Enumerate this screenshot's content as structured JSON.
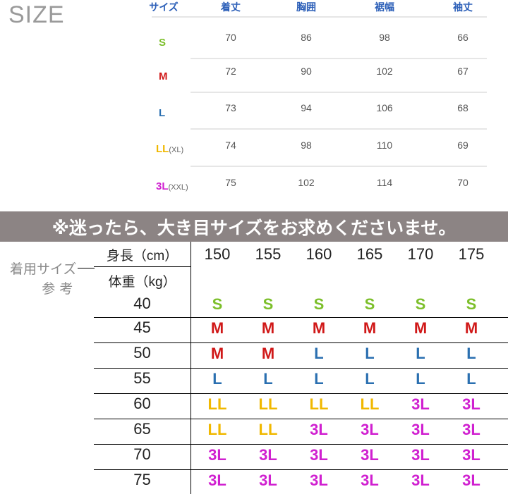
{
  "size_title": "SIZE",
  "size_table": {
    "headers": [
      "サイズ",
      "着丈",
      "胸囲",
      "裾幅",
      "袖丈"
    ],
    "rows": [
      {
        "size": "S",
        "alt": "",
        "values": [
          "70",
          "86",
          "98",
          "66"
        ],
        "color": "#7cbf2a"
      },
      {
        "size": "M",
        "alt": "",
        "values": [
          "72",
          "90",
          "102",
          "67"
        ],
        "color": "#d01818"
      },
      {
        "size": "L",
        "alt": "",
        "values": [
          "73",
          "94",
          "106",
          "68"
        ],
        "color": "#2a6fb0"
      },
      {
        "size": "LL",
        "alt": "(XL)",
        "values": [
          "74",
          "98",
          "110",
          "69"
        ],
        "color": "#f0b800"
      },
      {
        "size": "3L",
        "alt": "(XXL)",
        "values": [
          "75",
          "102",
          "114",
          "70"
        ],
        "color": "#d020d0"
      }
    ]
  },
  "banner": "※迷ったら、大き目サイズをお求めくださいませ。",
  "guide": {
    "side_label_1": "着用サイズ",
    "side_label_2": "参 考",
    "height_label": "身長（cm）",
    "weight_label": "体重（kg）",
    "heights": [
      "150",
      "155",
      "160",
      "165",
      "170",
      "175"
    ],
    "rows": [
      {
        "weight": "40",
        "sizes": [
          "S",
          "S",
          "S",
          "S",
          "S",
          "S"
        ]
      },
      {
        "weight": "45",
        "sizes": [
          "M",
          "M",
          "M",
          "M",
          "M",
          "M"
        ]
      },
      {
        "weight": "50",
        "sizes": [
          "M",
          "M",
          "L",
          "L",
          "L",
          "L"
        ]
      },
      {
        "weight": "55",
        "sizes": [
          "L",
          "L",
          "L",
          "L",
          "L",
          "L"
        ]
      },
      {
        "weight": "60",
        "sizes": [
          "LL",
          "LL",
          "LL",
          "LL",
          "3L",
          "3L"
        ]
      },
      {
        "weight": "65",
        "sizes": [
          "LL",
          "LL",
          "3L",
          "3L",
          "3L",
          "3L"
        ]
      },
      {
        "weight": "70",
        "sizes": [
          "3L",
          "3L",
          "3L",
          "3L",
          "3L",
          "3L"
        ]
      },
      {
        "weight": "75",
        "sizes": [
          "3L",
          "3L",
          "3L",
          "3L",
          "3L",
          "3L"
        ]
      }
    ]
  },
  "colors": {
    "S": "#7cbf2a",
    "M": "#d01818",
    "L": "#2a6fb0",
    "LL": "#f0b800",
    "3L": "#d020d0"
  }
}
